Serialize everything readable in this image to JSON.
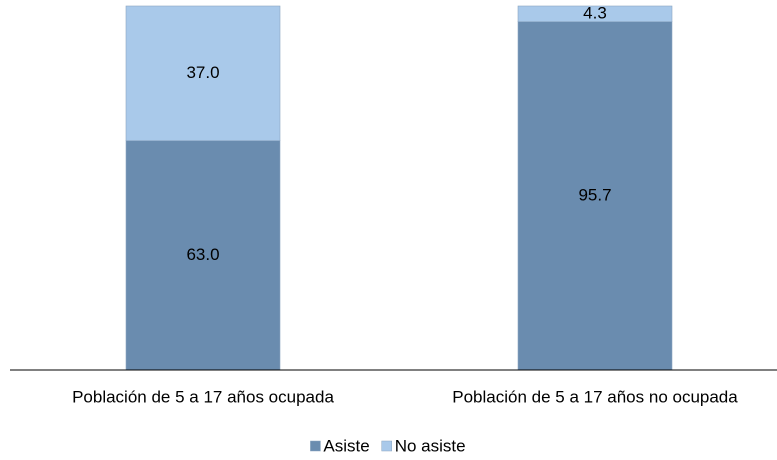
{
  "chart_data": {
    "type": "stacked_bar",
    "categories": [
      "Población de 5 a 17 años ocupada",
      "Población de 5 a 17 años no ocupada"
    ],
    "series": [
      {
        "name": "Asiste",
        "color": "#6a8caf",
        "values": [
          63,
          95.7
        ],
        "value_labels": [
          "63.0",
          "95.7"
        ]
      },
      {
        "name": "No asiste",
        "color": "#a9c9ea",
        "values": [
          37,
          4.3
        ],
        "value_labels": [
          "37.0",
          "4.3"
        ]
      }
    ],
    "ylim": [
      0,
      100
    ],
    "legend": "bottom"
  }
}
